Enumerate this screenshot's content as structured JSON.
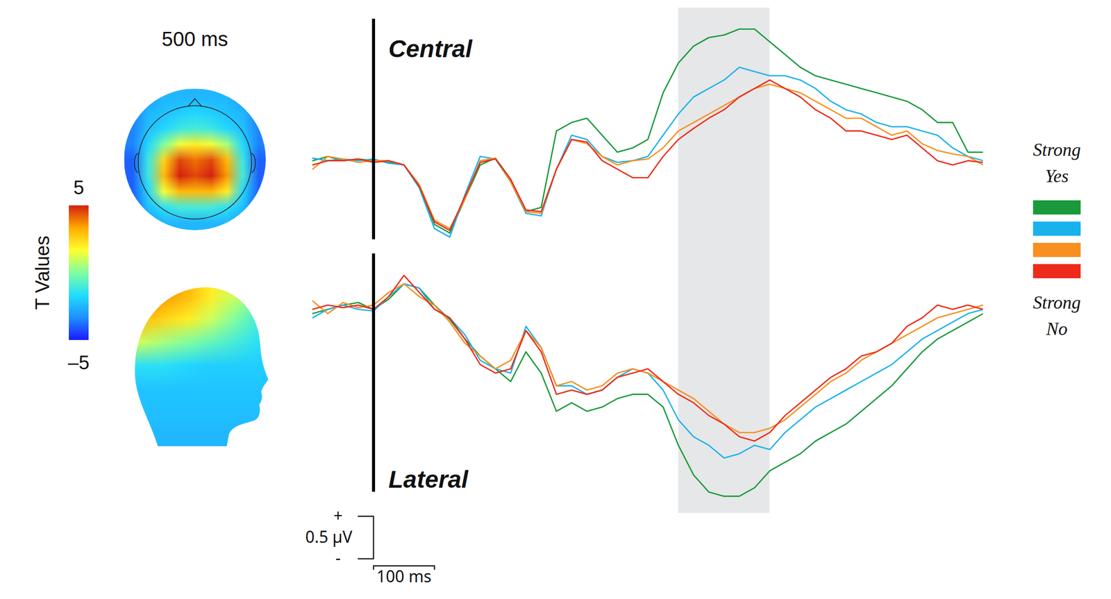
{
  "chart_data": {
    "type": "line",
    "tick_labels": false,
    "legend": "right",
    "xlim": [
      -100,
      1000
    ],
    "onset": 0,
    "highlight": [
      500,
      650
    ],
    "x": [
      -100,
      -75,
      -50,
      -25,
      0,
      25,
      50,
      75,
      100,
      125,
      150,
      175,
      200,
      225,
      250,
      275,
      300,
      325,
      350,
      375,
      400,
      425,
      450,
      475,
      500,
      525,
      550,
      575,
      600,
      625,
      650,
      675,
      700,
      725,
      750,
      775,
      800,
      825,
      850,
      875,
      900,
      925,
      950,
      975,
      1000
    ],
    "panels": [
      {
        "title": "Central",
        "ylim": [
          -1.0,
          1.8
        ],
        "series": [
          {
            "name": "Strong Yes",
            "color": "#1a9a3a",
            "values": [
              0,
              0.05,
              0,
              0.02,
              0,
              -0.02,
              -0.05,
              -0.3,
              -0.75,
              -0.85,
              -0.45,
              -0.05,
              0.03,
              -0.22,
              -0.6,
              -0.55,
              0.35,
              0.45,
              0.5,
              0.3,
              0.1,
              0.15,
              0.25,
              0.8,
              1.15,
              1.35,
              1.45,
              1.48,
              1.55,
              1.55,
              1.4,
              1.25,
              1.1,
              1.0,
              0.95,
              0.9,
              0.85,
              0.8,
              0.75,
              0.7,
              0.6,
              0.45,
              0.45,
              0.1,
              0.1
            ]
          },
          {
            "name": null,
            "color": "#1ab2ec",
            "values": [
              0.03,
              0.0,
              0.02,
              0.0,
              0.02,
              -0.03,
              -0.05,
              -0.32,
              -0.8,
              -0.9,
              -0.4,
              0.05,
              0.02,
              -0.25,
              -0.62,
              -0.65,
              -0.1,
              0.3,
              0.25,
              0.05,
              -0.02,
              0.0,
              0.05,
              0.3,
              0.55,
              0.75,
              0.85,
              0.95,
              1.1,
              1.05,
              1.0,
              1.0,
              0.95,
              0.85,
              0.7,
              0.6,
              0.55,
              0.45,
              0.4,
              0.4,
              0.35,
              0.3,
              0.15,
              0.05,
              0.0
            ]
          },
          {
            "name": null,
            "color": "#f7901e",
            "values": [
              -0.1,
              0.05,
              0.02,
              -0.02,
              0.0,
              0.0,
              -0.05,
              -0.28,
              -0.7,
              -0.8,
              -0.45,
              0.0,
              0.03,
              -0.25,
              -0.6,
              -0.62,
              -0.1,
              0.25,
              0.2,
              0.05,
              -0.05,
              0.0,
              0.02,
              0.15,
              0.35,
              0.45,
              0.55,
              0.65,
              0.75,
              0.85,
              0.9,
              0.85,
              0.8,
              0.7,
              0.6,
              0.5,
              0.5,
              0.4,
              0.3,
              0.35,
              0.2,
              0.12,
              0.08,
              0.05,
              -0.05
            ]
          },
          {
            "name": "Strong No",
            "color": "#ee2a1b",
            "values": [
              -0.05,
              0.0,
              0.0,
              0.02,
              -0.02,
              0.0,
              -0.05,
              -0.3,
              -0.72,
              -0.82,
              -0.42,
              -0.02,
              0.02,
              -0.22,
              -0.58,
              -0.6,
              -0.1,
              0.25,
              0.22,
              0.0,
              -0.1,
              -0.2,
              -0.2,
              0.05,
              0.25,
              0.38,
              0.5,
              0.6,
              0.75,
              0.85,
              0.95,
              0.85,
              0.75,
              0.6,
              0.5,
              0.35,
              0.35,
              0.3,
              0.25,
              0.3,
              0.15,
              0.0,
              -0.05,
              0.0,
              -0.02
            ]
          }
        ]
      },
      {
        "title": "Lateral",
        "ylim": [
          -2.4,
          0.75
        ],
        "series": [
          {
            "name": "Strong Yes",
            "color": "#1a9a3a",
            "values": [
              -0.05,
              0.0,
              0.05,
              0.08,
              0.0,
              0.12,
              0.3,
              0.25,
              0.05,
              -0.12,
              -0.35,
              -0.55,
              -0.7,
              -0.85,
              -0.5,
              -0.75,
              -1.2,
              -1.1,
              -1.2,
              -1.15,
              -1.05,
              -1.0,
              -1.0,
              -1.15,
              -1.6,
              -1.95,
              -2.15,
              -2.2,
              -2.2,
              -2.1,
              -1.9,
              -1.8,
              -1.7,
              -1.55,
              -1.45,
              -1.35,
              -1.2,
              -1.05,
              -0.9,
              -0.7,
              -0.5,
              -0.35,
              -0.25,
              -0.15,
              -0.05
            ]
          },
          {
            "name": null,
            "color": "#1ab2ec",
            "values": [
              -0.1,
              0.0,
              0.05,
              0.0,
              -0.02,
              0.15,
              0.3,
              0.25,
              0.0,
              -0.1,
              -0.3,
              -0.6,
              -0.7,
              -0.75,
              -0.2,
              -0.45,
              -0.9,
              -0.9,
              -1.0,
              -0.95,
              -0.8,
              -0.7,
              -0.75,
              -0.95,
              -1.3,
              -1.5,
              -1.6,
              -1.75,
              -1.7,
              -1.6,
              -1.65,
              -1.45,
              -1.3,
              -1.15,
              -1.05,
              -0.95,
              -0.85,
              -0.75,
              -0.65,
              -0.5,
              -0.35,
              -0.25,
              -0.15,
              -0.05,
              0.0
            ]
          },
          {
            "name": null,
            "color": "#f7901e",
            "values": [
              0.1,
              -0.05,
              0.08,
              0.02,
              0.05,
              0.2,
              0.3,
              0.15,
              0.05,
              -0.15,
              -0.4,
              -0.55,
              -0.7,
              -0.6,
              -0.25,
              -0.45,
              -0.9,
              -0.85,
              -0.95,
              -0.9,
              -0.75,
              -0.7,
              -0.75,
              -0.85,
              -0.95,
              -1.05,
              -1.2,
              -1.35,
              -1.45,
              -1.45,
              -1.4,
              -1.3,
              -1.15,
              -1.0,
              -0.85,
              -0.75,
              -0.6,
              -0.5,
              -0.4,
              -0.3,
              -0.2,
              -0.1,
              -0.05,
              0.0,
              0.05
            ]
          },
          {
            "name": "Strong No",
            "color": "#ee2a1b",
            "values": [
              0.0,
              0.05,
              0.02,
              0.05,
              0.0,
              0.15,
              0.4,
              0.2,
              0.0,
              -0.1,
              -0.35,
              -0.65,
              -0.75,
              -0.7,
              -0.25,
              -0.5,
              -1.0,
              -0.95,
              -1.0,
              -0.95,
              -0.8,
              -0.75,
              -0.7,
              -0.85,
              -1.0,
              -1.1,
              -1.25,
              -1.35,
              -1.5,
              -1.55,
              -1.45,
              -1.25,
              -1.1,
              -0.95,
              -0.8,
              -0.7,
              -0.55,
              -0.5,
              -0.4,
              -0.2,
              -0.1,
              0.05,
              0.0,
              0.05,
              0.0
            ]
          }
        ]
      }
    ],
    "scale_bars": {
      "y": {
        "value": 0.5,
        "label": "0.5 µV",
        "plus": "+",
        "minus": "-"
      },
      "x": {
        "value": 100,
        "label": "100 ms"
      }
    },
    "topomap_label": "500 ms",
    "colorbar": {
      "label": "T Values",
      "lim": [
        -5,
        5
      ],
      "ticks": [
        {
          "value": 5,
          "label": "5"
        },
        {
          "value": -5,
          "label": "–5"
        }
      ]
    },
    "topomap_top": [
      [
        -4,
        -3,
        -2.5,
        -2.5,
        -2.5,
        -2.5,
        -2.5,
        -3,
        -4
      ],
      [
        -3.5,
        -2.5,
        -2.3,
        -2,
        -1.8,
        -2,
        -2.3,
        -2.5,
        -3.5
      ],
      [
        -3.5,
        -2.3,
        -1.8,
        -1.2,
        -1,
        -1.2,
        -1.8,
        -2.3,
        -3.5
      ],
      [
        -3.5,
        -1.8,
        0,
        1.5,
        2,
        1.5,
        0.5,
        -1.8,
        -3.5
      ],
      [
        -4,
        -1.2,
        2.5,
        4.5,
        4,
        4.5,
        3,
        -1.2,
        -4
      ],
      [
        -4,
        -1.2,
        3,
        5,
        4.5,
        5,
        3.5,
        -1,
        -4
      ],
      [
        -4,
        -1.8,
        1.5,
        3,
        3,
        3,
        2,
        -1.8,
        -4
      ],
      [
        -4,
        -2.3,
        -1.5,
        -1,
        -1,
        -1,
        -1.5,
        -2.3,
        -4
      ],
      [
        -4.5,
        -3,
        -2.5,
        -2.5,
        -2.5,
        -2.5,
        -2.5,
        -3,
        -4.5
      ]
    ],
    "topomap_side": [
      [
        4,
        3.5,
        3,
        2,
        1,
        0
      ],
      [
        3,
        2.5,
        2,
        1,
        0,
        -1
      ],
      [
        1,
        0.5,
        0,
        -0.5,
        -1,
        -1.5
      ],
      [
        -1.5,
        -1.5,
        -1.8,
        -2,
        -2,
        -2
      ],
      [
        -2.2,
        -2.2,
        -2.2,
        -2.2,
        -2.2,
        -2.2
      ],
      [
        -2.3,
        -2.3,
        -2.3,
        -2.3,
        -2.3,
        -2.3
      ],
      [
        -2.5,
        -2.5,
        -2.5,
        -2.5,
        -2.5,
        -2.5
      ]
    ]
  }
}
